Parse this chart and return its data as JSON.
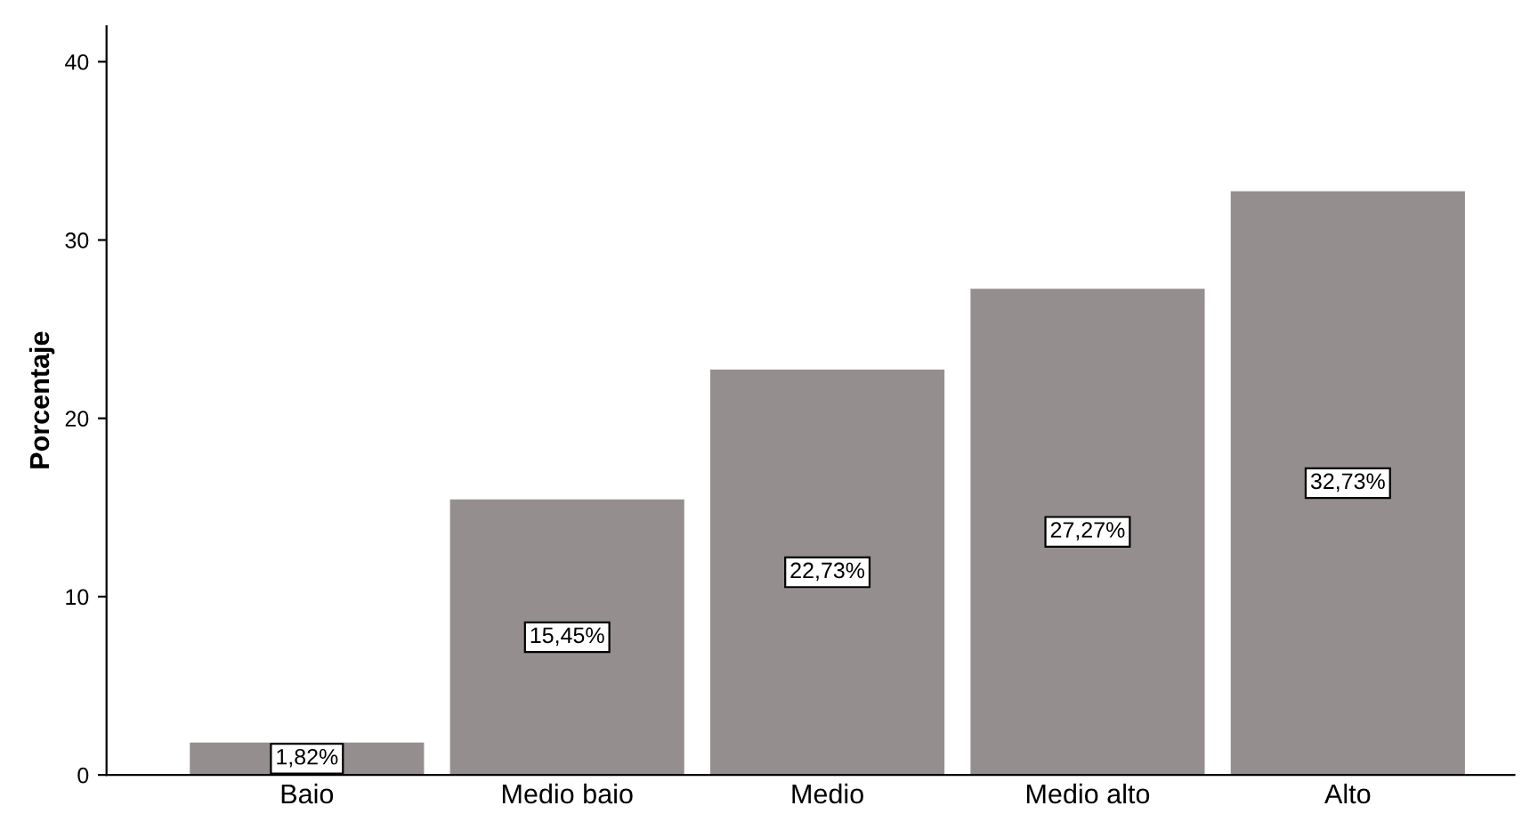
{
  "chart_data": {
    "type": "bar",
    "ylabel": "Porcentaje",
    "categories": [
      "Baio",
      "Medio baio",
      "Medio",
      "Medio alto",
      "Alto"
    ],
    "values": [
      1.82,
      15.45,
      22.73,
      27.27,
      32.73
    ],
    "value_labels": [
      "1,82%",
      "15,45%",
      "22,73%",
      "27,27%",
      "32,73%"
    ],
    "color": "#948f8e",
    "ylim": [
      0,
      42
    ],
    "yticks": [
      0,
      10,
      20,
      30,
      40
    ],
    "grid": false,
    "legend": false
  }
}
